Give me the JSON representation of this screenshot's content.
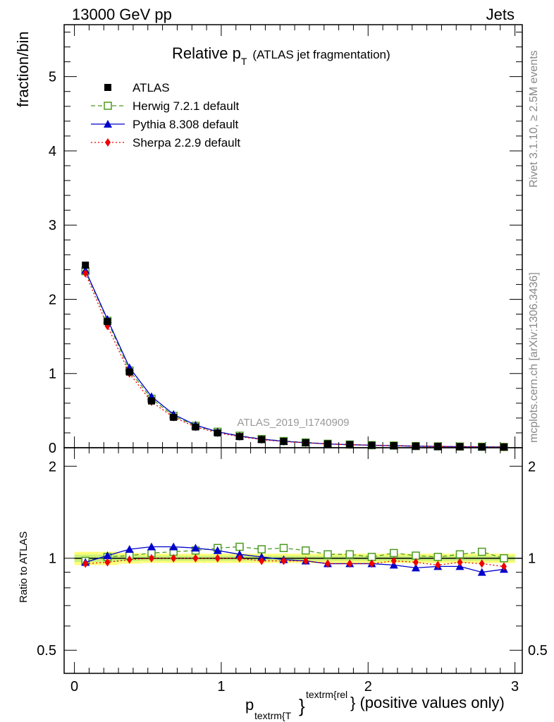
{
  "header": {
    "left": "13000 GeV pp",
    "right": "Jets"
  },
  "side_labels": {
    "rivet": "Rivet 3.1.10, ≥ 2.5M events",
    "mcplots": "mcplots.cern.ch [arXiv:1306.3436]"
  },
  "chart_data": {
    "type": "line",
    "title_main": "Relative p",
    "title_sub": "T",
    "title_note": "(ATLAS jet fragmentation)",
    "analysis_label": "ATLAS_2019_I1740909",
    "ylabel_main": "fraction/bin",
    "ylabel_ratio": "Ratio to ATLAS",
    "xlabel": {
      "p": "p",
      "sub": "textrm{T",
      "sup": "textrm{rel",
      "brace": "}",
      "rest": "} (positive values only)"
    },
    "xlim": [
      -0.07,
      3.05
    ],
    "ylim_main": [
      0,
      5.7
    ],
    "ylim_ratio": [
      0.42,
      2.3
    ],
    "x_ticks": [
      "0",
      "1",
      "2",
      "3"
    ],
    "y_ticks_main": [
      "0",
      "1",
      "2",
      "3",
      "4",
      "5"
    ],
    "y_ticks_ratio": [
      "0.5",
      "1",
      "2"
    ],
    "legend_position": "top-left",
    "x": [
      0.075,
      0.225,
      0.375,
      0.525,
      0.675,
      0.825,
      0.975,
      1.125,
      1.275,
      1.425,
      1.575,
      1.725,
      1.875,
      2.025,
      2.175,
      2.325,
      2.475,
      2.625,
      2.775,
      2.925
    ],
    "data_band": [
      0.05,
      0.05,
      0.04,
      0.035,
      0.035,
      0.035,
      0.035,
      0.035,
      0.035,
      0.035,
      0.035,
      0.035,
      0.035,
      0.035,
      0.035,
      0.035,
      0.035,
      0.035,
      0.035,
      0.035
    ],
    "series": [
      {
        "name": "ATLAS",
        "color": "#000000",
        "marker": "square-filled",
        "line": "none",
        "values": [
          2.46,
          1.7,
          1.02,
          0.63,
          0.41,
          0.28,
          0.2,
          0.15,
          0.11,
          0.085,
          0.067,
          0.052,
          0.042,
          0.034,
          0.028,
          0.022,
          0.018,
          0.015,
          0.012,
          0.01
        ],
        "ratio": [
          1,
          1,
          1,
          1,
          1,
          1,
          1,
          1,
          1,
          1,
          1,
          1,
          1,
          1,
          1,
          1,
          1,
          1,
          1,
          1
        ]
      },
      {
        "name": "Herwig 7.2.1 default",
        "color": "#4a9b1f",
        "marker": "square-open",
        "line": "dashed",
        "values": [
          2.38,
          1.71,
          1.04,
          0.66,
          0.43,
          0.295,
          0.215,
          0.162,
          0.117,
          0.09,
          0.071,
          0.053,
          0.043,
          0.034,
          0.029,
          0.022,
          0.018,
          0.0155,
          0.0125,
          0.01
        ],
        "ratio": [
          0.98,
          1.01,
          1.02,
          1.04,
          1.05,
          1.06,
          1.08,
          1.09,
          1.07,
          1.08,
          1.06,
          1.03,
          1.03,
          1.01,
          1.04,
          1.02,
          1.01,
          1.03,
          1.05,
          1.0
        ]
      },
      {
        "name": "Pythia 8.308 default",
        "color": "#0000cc",
        "marker": "triangle",
        "line": "solid",
        "values": [
          2.39,
          1.73,
          1.08,
          0.69,
          0.45,
          0.305,
          0.215,
          0.157,
          0.115,
          0.087,
          0.068,
          0.051,
          0.041,
          0.033,
          0.027,
          0.021,
          0.017,
          0.014,
          0.011,
          0.009
        ],
        "ratio": [
          0.97,
          1.02,
          1.07,
          1.09,
          1.09,
          1.08,
          1.06,
          1.03,
          1.01,
          0.99,
          0.98,
          0.96,
          0.96,
          0.96,
          0.95,
          0.93,
          0.94,
          0.94,
          0.9,
          0.92
        ]
      },
      {
        "name": "Sherpa 2.2.9 default",
        "color": "#ee0000",
        "marker": "diamond",
        "line": "dotted",
        "values": [
          2.35,
          1.64,
          1.0,
          0.62,
          0.41,
          0.28,
          0.2,
          0.15,
          0.109,
          0.083,
          0.066,
          0.05,
          0.04,
          0.033,
          0.0275,
          0.021,
          0.017,
          0.0145,
          0.0115,
          0.0095
        ],
        "ratio": [
          0.96,
          0.97,
          0.99,
          1.0,
          1.0,
          1.0,
          1.0,
          1.0,
          0.98,
          0.98,
          0.98,
          0.96,
          0.96,
          0.96,
          0.98,
          0.97,
          0.95,
          0.97,
          0.96,
          0.94
        ]
      }
    ]
  }
}
